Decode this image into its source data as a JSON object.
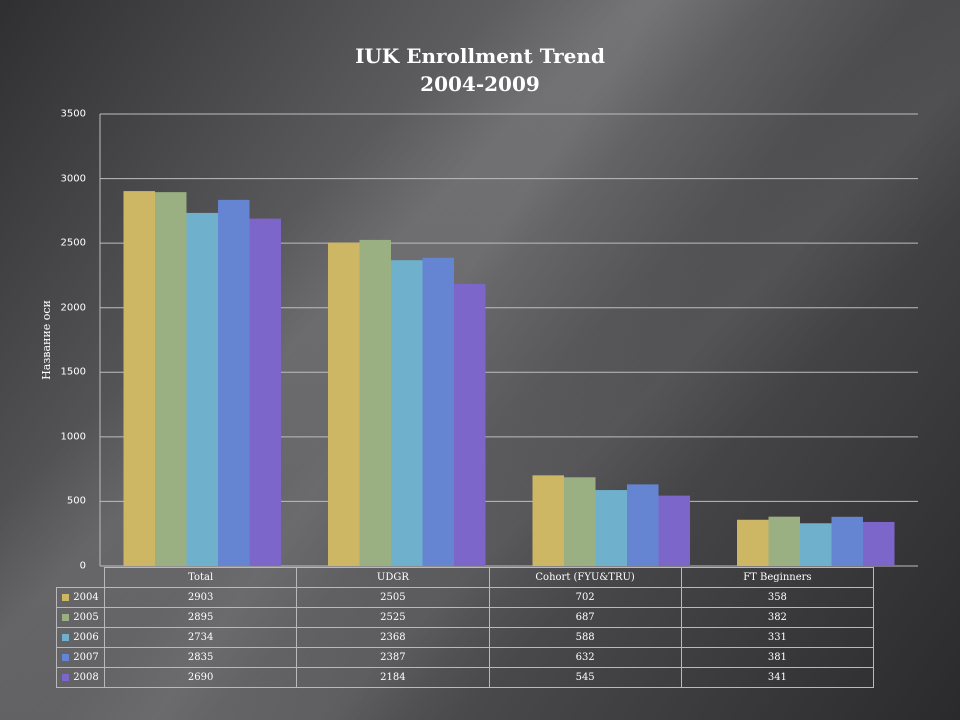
{
  "chart_data": {
    "type": "bar",
    "title": "IUK Enrollment Trend",
    "subtitle": "2004-2009",
    "ylabel": "Название оси",
    "xlabel": "",
    "ylim": [
      0,
      3500
    ],
    "yticks": [
      "0",
      "500",
      "1000",
      "1500",
      "2000",
      "2500",
      "3000",
      "3500"
    ],
    "grid": true,
    "legend_placement": "data-table",
    "categories": [
      "Total",
      "UDGR",
      "Cohort (FYU&TRU)",
      "FT Beginners"
    ],
    "series": [
      {
        "name": "2004",
        "color": "#cdb765",
        "values": [
          2903,
          2505,
          702,
          358
        ]
      },
      {
        "name": "2005",
        "color": "#9aaf82",
        "values": [
          2895,
          2525,
          687,
          382
        ]
      },
      {
        "name": "2006",
        "color": "#6fb1cc",
        "values": [
          2734,
          2368,
          588,
          331
        ]
      },
      {
        "name": "2007",
        "color": "#6585d2",
        "values": [
          2835,
          2387,
          632,
          381
        ]
      },
      {
        "name": "2008",
        "color": "#7d66ca",
        "values": [
          2690,
          2184,
          545,
          341
        ]
      }
    ]
  }
}
